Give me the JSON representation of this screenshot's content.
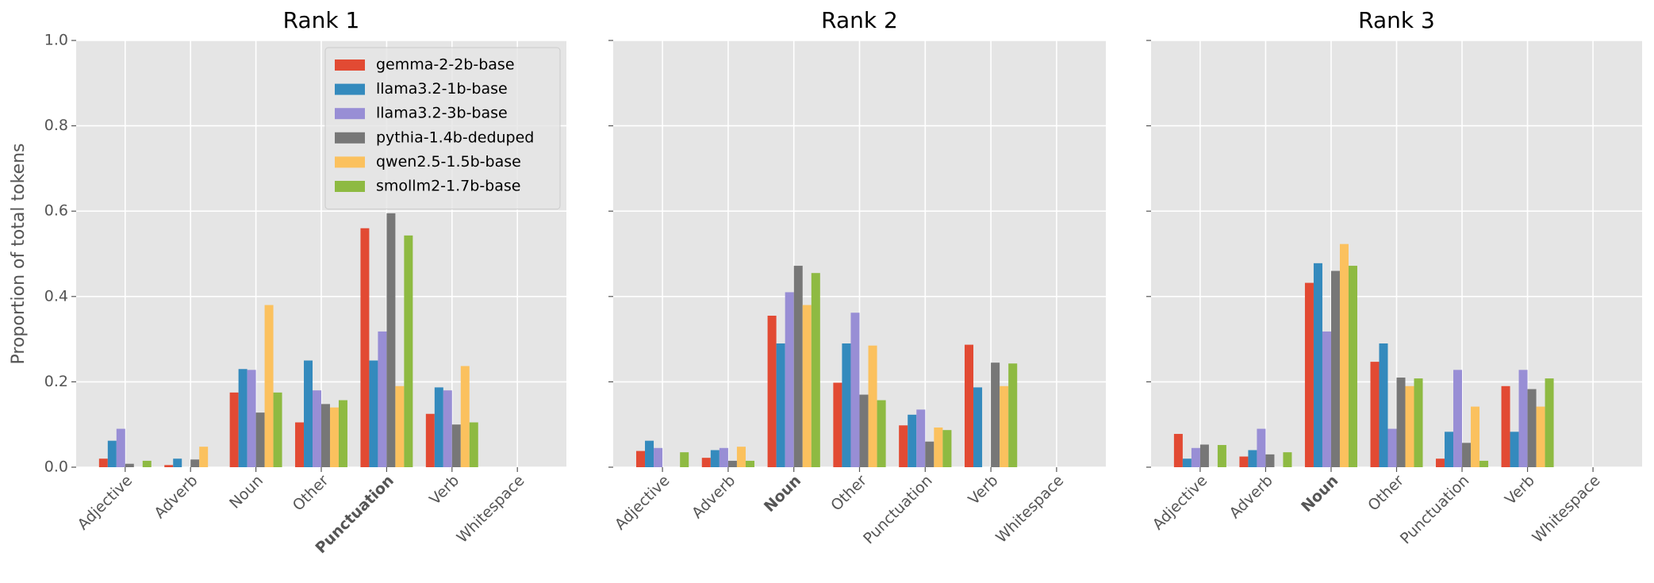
{
  "chart_data": [
    {
      "type": "bar",
      "title": "Rank 1",
      "ylabel": "Proportion of total tokens",
      "categories": [
        "Adjective",
        "Adverb",
        "Noun",
        "Other",
        "Punctuation",
        "Verb",
        "Whitespace"
      ],
      "bold_categories": [
        4
      ],
      "series": [
        {
          "name": "gemma-2-2b-base",
          "color": "#E24A33",
          "values": [
            0.02,
            0.005,
            0.175,
            0.105,
            0.56,
            0.125,
            0
          ]
        },
        {
          "name": "llama3.2-1b-base",
          "color": "#348ABD",
          "values": [
            0.062,
            0.02,
            0.23,
            0.25,
            0.25,
            0.187,
            0
          ]
        },
        {
          "name": "llama3.2-3b-base",
          "color": "#988ED5",
          "values": [
            0.09,
            0,
            0.228,
            0.18,
            0.318,
            0.18,
            0
          ]
        },
        {
          "name": "pythia-1.4b-deduped",
          "color": "#777777",
          "values": [
            0.008,
            0.018,
            0.128,
            0.148,
            0.595,
            0.1,
            0
          ]
        },
        {
          "name": "qwen2.5-1.5b-base",
          "color": "#FBC15E",
          "values": [
            0,
            0.048,
            0.38,
            0.14,
            0.19,
            0.237,
            0
          ]
        },
        {
          "name": "smollm2-1.7b-base",
          "color": "#8EBA42",
          "values": [
            0.015,
            0,
            0.175,
            0.157,
            0.543,
            0.105,
            0
          ]
        }
      ],
      "ylim": [
        0,
        1
      ],
      "yticks": [
        {
          "value": 0,
          "label": "0.0"
        },
        0.2,
        0.4,
        0.6,
        0.8,
        {
          "value": 1,
          "label": "1.0"
        }
      ],
      "grid": true,
      "legend": "upper right"
    },
    {
      "type": "bar",
      "title": "Rank 2",
      "categories": [
        "Adjective",
        "Adverb",
        "Noun",
        "Other",
        "Punctuation",
        "Verb",
        "Whitespace"
      ],
      "bold_categories": [
        2
      ],
      "series": [
        {
          "color": "#E24A33",
          "values": [
            0.038,
            0.022,
            0.355,
            0.198,
            0.098,
            0.287,
            0
          ]
        },
        {
          "color": "#348ABD",
          "values": [
            0.062,
            0.04,
            0.29,
            0.29,
            0.123,
            0.187,
            0
          ]
        },
        {
          "color": "#988ED5",
          "values": [
            0.045,
            0.045,
            0.41,
            0.362,
            0.135,
            0,
            0
          ]
        },
        {
          "color": "#777777",
          "values": [
            0,
            0.015,
            0.472,
            0.17,
            0.06,
            0.245,
            0
          ]
        },
        {
          "color": "#FBC15E",
          "values": [
            0,
            0.048,
            0.38,
            0.285,
            0.093,
            0.19,
            0
          ]
        },
        {
          "color": "#8EBA42",
          "values": [
            0.035,
            0.015,
            0.455,
            0.157,
            0.087,
            0.243,
            0
          ]
        }
      ],
      "ylim": [
        0,
        1
      ],
      "yticks": [
        0,
        0.2,
        0.4,
        0.6,
        0.8,
        1
      ],
      "grid": true
    },
    {
      "type": "bar",
      "title": "Rank 3",
      "categories": [
        "Adjective",
        "Adverb",
        "Noun",
        "Other",
        "Punctuation",
        "Verb",
        "Whitespace"
      ],
      "bold_categories": [
        2
      ],
      "series": [
        {
          "color": "#E24A33",
          "values": [
            0.078,
            0.025,
            0.432,
            0.247,
            0.02,
            0.19,
            0
          ]
        },
        {
          "color": "#348ABD",
          "values": [
            0.02,
            0.04,
            0.478,
            0.29,
            0.083,
            0.083,
            0
          ]
        },
        {
          "color": "#988ED5",
          "values": [
            0.045,
            0.09,
            0.318,
            0.09,
            0.228,
            0.228,
            0
          ]
        },
        {
          "color": "#777777",
          "values": [
            0.053,
            0.03,
            0.46,
            0.21,
            0.057,
            0.183,
            0
          ]
        },
        {
          "color": "#FBC15E",
          "values": [
            0,
            0,
            0.523,
            0.19,
            0.142,
            0.142,
            0
          ]
        },
        {
          "color": "#8EBA42",
          "values": [
            0.052,
            0.035,
            0.472,
            0.208,
            0.015,
            0.208,
            0
          ]
        }
      ],
      "ylim": [
        0,
        1
      ],
      "yticks": [
        0,
        0.2,
        0.4,
        0.6,
        0.8,
        1
      ],
      "grid": true
    }
  ]
}
